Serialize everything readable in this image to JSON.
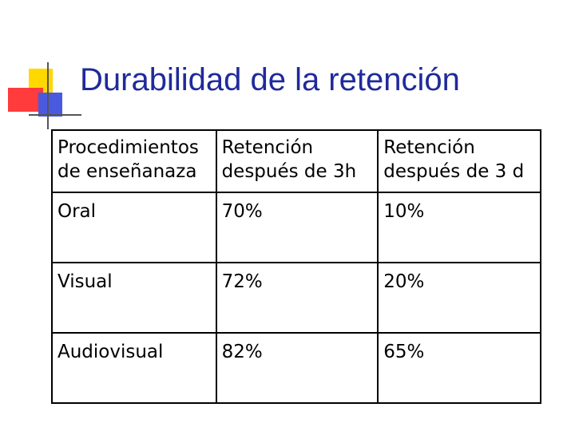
{
  "slide": {
    "title": "Durabilidad de la retención"
  },
  "table": {
    "headers": [
      [
        "Procedimientos",
        "de enseñanaza"
      ],
      [
        "Retención",
        "después de 3h"
      ],
      [
        "Retención",
        "después de 3 d"
      ]
    ],
    "rows": [
      [
        "Oral",
        "70%",
        "10%"
      ],
      [
        "Visual",
        "72%",
        "20%"
      ],
      [
        "Audiovisual",
        "82%",
        "65%"
      ]
    ]
  },
  "colors": {
    "title": "#1f2a9a",
    "logo_yellow": "#ffd800",
    "logo_red": "#ff3b3b",
    "logo_blue": "#4a5ae0"
  }
}
